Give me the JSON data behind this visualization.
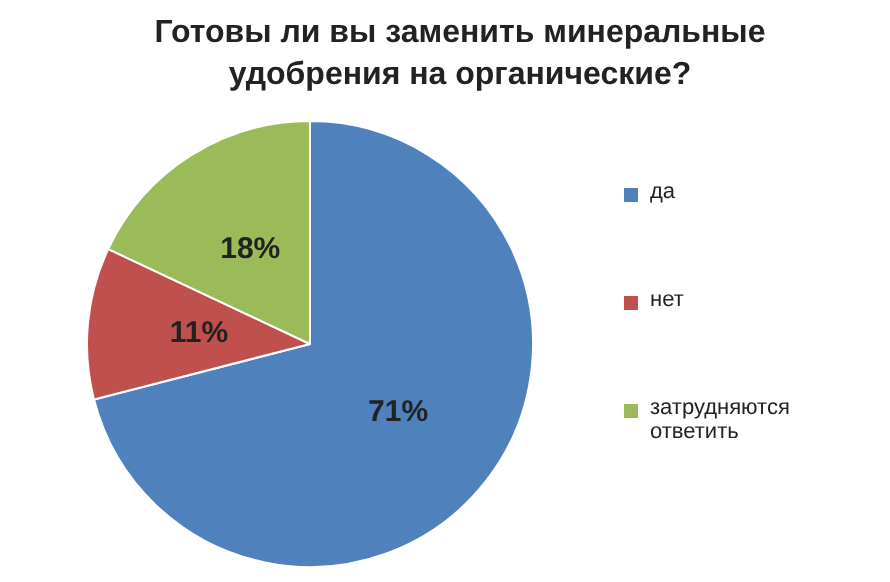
{
  "chart_data": {
    "type": "pie",
    "title": "Готовы ли вы заменить минеральные удобрения на органические?",
    "categories": [
      "да",
      "нет",
      "затрудняются ответить"
    ],
    "values": [
      71,
      11,
      18
    ],
    "value_labels": [
      "71%",
      "11%",
      "18%"
    ],
    "colors": [
      "#4f81bd",
      "#c0504d",
      "#9bbb59"
    ],
    "legend": "right"
  }
}
